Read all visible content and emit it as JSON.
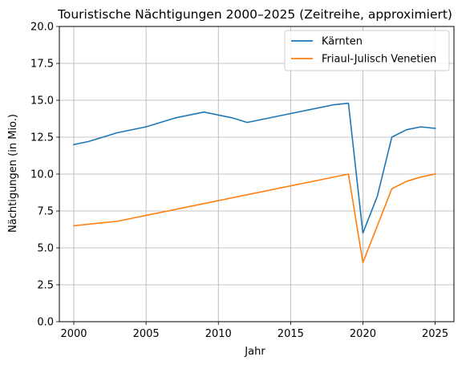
{
  "chart_data": {
    "type": "line",
    "title": "Touristische Nächtigungen 2000–2025 (Zeitreihe, approximiert)",
    "xlabel": "Jahr",
    "ylabel": "Nächtigungen (in Mio.)",
    "xlim": [
      1999,
      2026.3
    ],
    "ylim": [
      0,
      20
    ],
    "xticks": [
      2000,
      2005,
      2010,
      2015,
      2020,
      2025
    ],
    "yticks": [
      0.0,
      2.5,
      5.0,
      7.5,
      10.0,
      12.5,
      15.0,
      17.5,
      20.0
    ],
    "ytick_labels": [
      "0.0",
      "2.5",
      "5.0",
      "7.5",
      "10.0",
      "12.5",
      "15.0",
      "17.5",
      "20.0"
    ],
    "grid": true,
    "legend_position": "upper right",
    "series": [
      {
        "name": "Kärnten",
        "color": "#1f77b4",
        "x": [
          2000,
          2001,
          2003,
          2005,
          2007,
          2009,
          2011,
          2012,
          2014,
          2016,
          2018,
          2019,
          2020,
          2021,
          2022,
          2023,
          2024,
          2025
        ],
        "y": [
          12.0,
          12.2,
          12.8,
          13.2,
          13.8,
          14.2,
          13.8,
          13.5,
          13.9,
          14.3,
          14.7,
          14.8,
          6.0,
          8.5,
          12.5,
          13.0,
          13.2,
          13.1
        ]
      },
      {
        "name": "Friaul-Julisch Venetien",
        "color": "#ff7f0e",
        "x": [
          2000,
          2003,
          2019,
          2020,
          2022,
          2023,
          2024,
          2025
        ],
        "y": [
          6.5,
          6.8,
          10.0,
          4.0,
          9.0,
          9.5,
          9.8,
          10.0
        ]
      }
    ]
  }
}
